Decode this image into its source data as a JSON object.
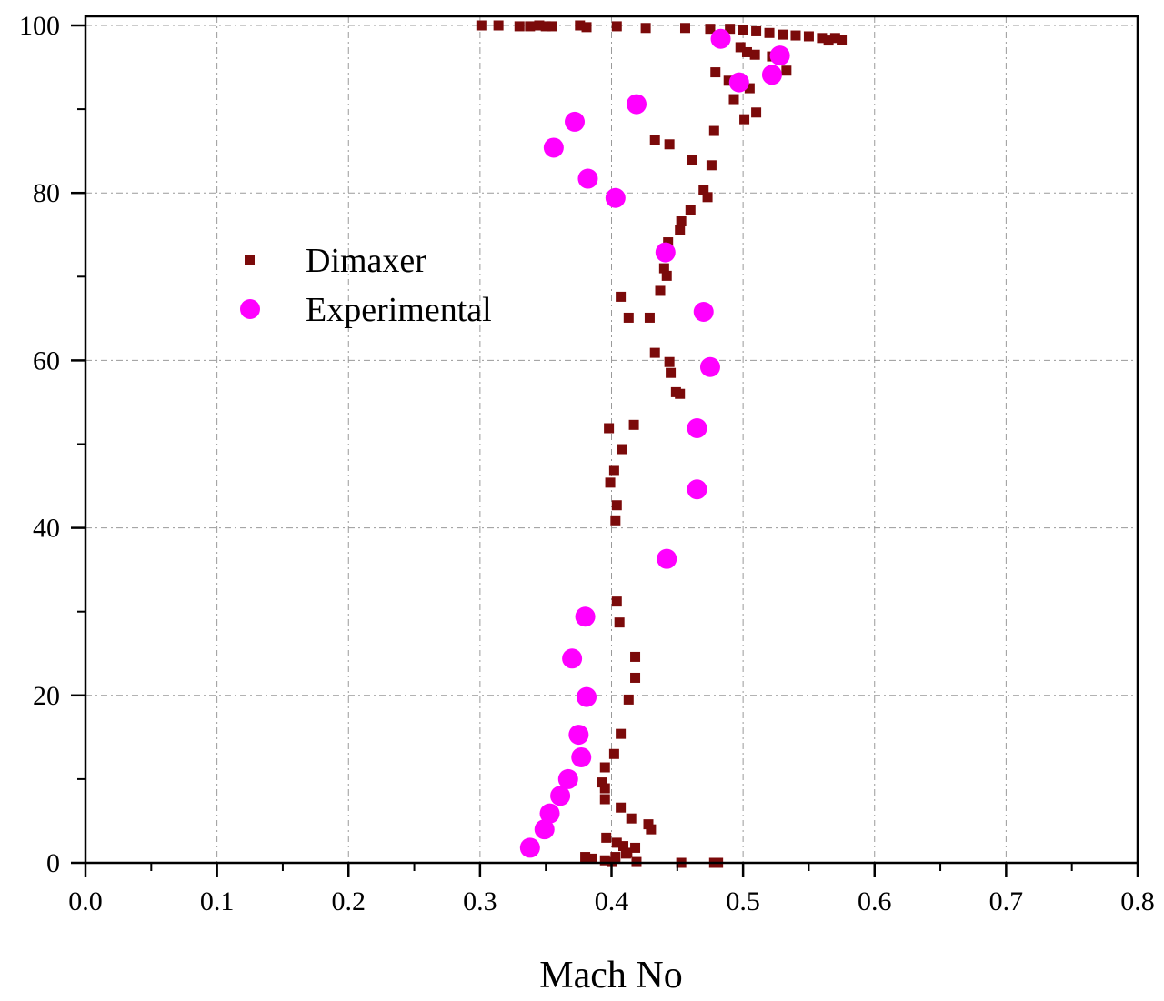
{
  "chart_data": {
    "type": "scatter",
    "title": "",
    "xlabel": "Mach No",
    "ylabel": "",
    "xlim": [
      0.0,
      0.8
    ],
    "ylim": [
      0,
      100
    ],
    "x_ticks": [
      "0.0",
      "0.1",
      "0.2",
      "0.3",
      "0.4",
      "0.5",
      "0.6",
      "0.7",
      "0.8"
    ],
    "y_ticks": [
      "0",
      "20",
      "40",
      "60",
      "80",
      "100"
    ],
    "grid": true,
    "legend_position": "left",
    "series": [
      {
        "name": "Dimaxer",
        "marker": "square",
        "color": "#7b0a0a",
        "points": [
          [
            0.301,
            100.0
          ],
          [
            0.314,
            100.0
          ],
          [
            0.33,
            99.9
          ],
          [
            0.338,
            99.9
          ],
          [
            0.345,
            100.0
          ],
          [
            0.35,
            99.9
          ],
          [
            0.355,
            99.9
          ],
          [
            0.376,
            100.0
          ],
          [
            0.381,
            99.8
          ],
          [
            0.404,
            99.9
          ],
          [
            0.426,
            99.7
          ],
          [
            0.456,
            99.7
          ],
          [
            0.475,
            99.6
          ],
          [
            0.49,
            99.6
          ],
          [
            0.5,
            99.5
          ],
          [
            0.51,
            99.3
          ],
          [
            0.52,
            99.1
          ],
          [
            0.53,
            98.9
          ],
          [
            0.54,
            98.8
          ],
          [
            0.55,
            98.7
          ],
          [
            0.56,
            98.5
          ],
          [
            0.565,
            98.2
          ],
          [
            0.57,
            98.5
          ],
          [
            0.575,
            98.3
          ],
          [
            0.498,
            97.4
          ],
          [
            0.503,
            96.8
          ],
          [
            0.509,
            96.5
          ],
          [
            0.522,
            96.3
          ],
          [
            0.533,
            94.6
          ],
          [
            0.479,
            94.4
          ],
          [
            0.489,
            93.4
          ],
          [
            0.505,
            92.5
          ],
          [
            0.493,
            91.2
          ],
          [
            0.51,
            89.6
          ],
          [
            0.501,
            88.8
          ],
          [
            0.478,
            87.4
          ],
          [
            0.433,
            86.3
          ],
          [
            0.444,
            85.8
          ],
          [
            0.461,
            83.9
          ],
          [
            0.476,
            83.3
          ],
          [
            0.47,
            80.3
          ],
          [
            0.473,
            79.5
          ],
          [
            0.46,
            78.0
          ],
          [
            0.453,
            76.6
          ],
          [
            0.452,
            75.6
          ],
          [
            0.443,
            74.1
          ],
          [
            0.44,
            71.0
          ],
          [
            0.442,
            70.1
          ],
          [
            0.437,
            68.3
          ],
          [
            0.407,
            67.6
          ],
          [
            0.413,
            65.1
          ],
          [
            0.429,
            65.1
          ],
          [
            0.433,
            60.9
          ],
          [
            0.444,
            59.8
          ],
          [
            0.445,
            58.5
          ],
          [
            0.449,
            56.2
          ],
          [
            0.452,
            56.0
          ],
          [
            0.398,
            51.9
          ],
          [
            0.417,
            52.3
          ],
          [
            0.408,
            49.4
          ],
          [
            0.399,
            45.4
          ],
          [
            0.402,
            46.8
          ],
          [
            0.404,
            42.7
          ],
          [
            0.403,
            40.9
          ],
          [
            0.404,
            31.2
          ],
          [
            0.406,
            28.7
          ],
          [
            0.418,
            24.6
          ],
          [
            0.418,
            22.1
          ],
          [
            0.413,
            19.5
          ],
          [
            0.407,
            15.4
          ],
          [
            0.402,
            13.0
          ],
          [
            0.395,
            11.4
          ],
          [
            0.393,
            9.6
          ],
          [
            0.395,
            8.9
          ],
          [
            0.395,
            7.6
          ],
          [
            0.407,
            6.6
          ],
          [
            0.415,
            5.3
          ],
          [
            0.428,
            4.6
          ],
          [
            0.43,
            4.0
          ],
          [
            0.396,
            3.0
          ],
          [
            0.404,
            2.4
          ],
          [
            0.409,
            2.0
          ],
          [
            0.412,
            1.2
          ],
          [
            0.418,
            1.8
          ],
          [
            0.403,
            0.7
          ],
          [
            0.411,
            1.1
          ],
          [
            0.4,
            0.1
          ],
          [
            0.395,
            0.3
          ],
          [
            0.385,
            0.5
          ],
          [
            0.38,
            0.7
          ],
          [
            0.419,
            0.1
          ],
          [
            0.453,
            0.0
          ],
          [
            0.478,
            0.0
          ],
          [
            0.481,
            0.0
          ]
        ]
      },
      {
        "name": "Experimental",
        "marker": "circle",
        "color": "#ff00ff",
        "points": [
          [
            0.483,
            98.4
          ],
          [
            0.528,
            96.4
          ],
          [
            0.522,
            94.1
          ],
          [
            0.497,
            93.2
          ],
          [
            0.419,
            90.6
          ],
          [
            0.372,
            88.5
          ],
          [
            0.356,
            85.4
          ],
          [
            0.382,
            81.7
          ],
          [
            0.403,
            79.4
          ],
          [
            0.441,
            72.9
          ],
          [
            0.47,
            65.8
          ],
          [
            0.475,
            59.2
          ],
          [
            0.465,
            51.9
          ],
          [
            0.465,
            44.6
          ],
          [
            0.442,
            36.3
          ],
          [
            0.38,
            29.4
          ],
          [
            0.37,
            24.4
          ],
          [
            0.381,
            19.8
          ],
          [
            0.375,
            15.3
          ],
          [
            0.377,
            12.6
          ],
          [
            0.367,
            10.0
          ],
          [
            0.361,
            8.0
          ],
          [
            0.353,
            5.9
          ],
          [
            0.349,
            4.0
          ],
          [
            0.338,
            1.8
          ]
        ]
      }
    ]
  }
}
